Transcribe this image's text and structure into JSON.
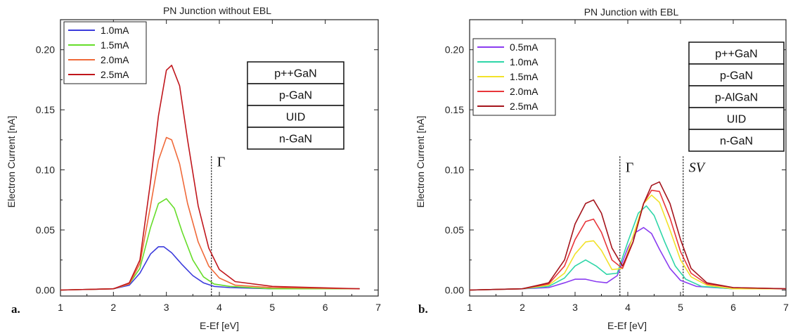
{
  "chart_data": [
    {
      "type": "line",
      "title": "PN Junction without EBL",
      "panel_label": "a.",
      "xlabel": "E-Ef [eV]",
      "ylabel": "Electron Current [nA]",
      "xlim": [
        1,
        7
      ],
      "ylim": [
        -0.005,
        0.225
      ],
      "xticks": [
        "1",
        "2",
        "3",
        "4",
        "5",
        "6",
        "7"
      ],
      "yticks": [
        "0.00",
        "0.05",
        "0.10",
        "0.15",
        "0.20"
      ],
      "legend_position": "top-left",
      "layer_stack": [
        "p++GaN",
        "p-GaN",
        "UID",
        "n-GaN"
      ],
      "annotations": [
        {
          "label": "Γ",
          "x": 3.85
        }
      ],
      "series": [
        {
          "name": "1.0mA",
          "color": "#3b3bdc",
          "x": [
            1.0,
            2.0,
            2.3,
            2.5,
            2.7,
            2.85,
            2.95,
            3.1,
            3.3,
            3.5,
            3.7,
            3.9,
            4.2,
            5.0,
            6.65
          ],
          "y": [
            0.0,
            0.001,
            0.004,
            0.014,
            0.03,
            0.036,
            0.036,
            0.031,
            0.021,
            0.012,
            0.006,
            0.003,
            0.002,
            0.001,
            0.001
          ]
        },
        {
          "name": "1.5mA",
          "color": "#66dd2a",
          "x": [
            1.0,
            2.0,
            2.3,
            2.5,
            2.7,
            2.85,
            3.0,
            3.15,
            3.3,
            3.5,
            3.7,
            3.9,
            4.2,
            5.0,
            6.65
          ],
          "y": [
            0.0,
            0.001,
            0.005,
            0.018,
            0.052,
            0.072,
            0.076,
            0.068,
            0.048,
            0.025,
            0.011,
            0.005,
            0.003,
            0.001,
            0.001
          ]
        },
        {
          "name": "2.0mA",
          "color": "#f06a3a",
          "x": [
            1.0,
            2.0,
            2.3,
            2.5,
            2.7,
            2.85,
            3.0,
            3.1,
            3.25,
            3.4,
            3.6,
            3.8,
            4.0,
            4.3,
            5.0,
            6.65
          ],
          "y": [
            0.0,
            0.001,
            0.005,
            0.022,
            0.07,
            0.108,
            0.127,
            0.125,
            0.105,
            0.072,
            0.04,
            0.02,
            0.01,
            0.004,
            0.002,
            0.001
          ]
        },
        {
          "name": "2.5mA",
          "color": "#c0161c",
          "x": [
            1.0,
            2.0,
            2.3,
            2.5,
            2.7,
            2.85,
            3.0,
            3.1,
            3.25,
            3.4,
            3.6,
            3.8,
            4.0,
            4.3,
            5.0,
            6.65
          ],
          "y": [
            0.0,
            0.001,
            0.006,
            0.025,
            0.09,
            0.145,
            0.183,
            0.187,
            0.17,
            0.125,
            0.07,
            0.035,
            0.017,
            0.007,
            0.003,
            0.001
          ]
        }
      ]
    },
    {
      "type": "line",
      "title": "PN Junction with EBL",
      "panel_label": "b.",
      "xlabel": "E-Ef [eV]",
      "ylabel": "Electron Current [nA]",
      "xlim": [
        1,
        7
      ],
      "ylim": [
        -0.005,
        0.225
      ],
      "xticks": [
        "1",
        "2",
        "3",
        "4",
        "5",
        "6",
        "7"
      ],
      "yticks": [
        "0.00",
        "0.05",
        "0.10",
        "0.15",
        "0.20"
      ],
      "legend_position": "top-left",
      "layer_stack": [
        "p++GaN",
        "p-GaN",
        "p-AlGaN",
        "UID",
        "n-GaN"
      ],
      "annotations": [
        {
          "label": "Γ",
          "x": 3.85
        },
        {
          "label": "SV",
          "x": 5.05
        }
      ],
      "series": [
        {
          "name": "0.5mA",
          "color": "#8a3cf0",
          "x": [
            1.0,
            2.0,
            2.5,
            2.8,
            3.0,
            3.2,
            3.4,
            3.6,
            3.8,
            4.0,
            4.15,
            4.3,
            4.45,
            4.6,
            4.8,
            5.0,
            5.3,
            6.0,
            7.0
          ],
          "y": [
            0.0,
            0.001,
            0.002,
            0.006,
            0.009,
            0.009,
            0.007,
            0.006,
            0.012,
            0.035,
            0.048,
            0.052,
            0.047,
            0.034,
            0.018,
            0.008,
            0.003,
            0.001,
            0.001
          ]
        },
        {
          "name": "1.0mA",
          "color": "#2ed6a8",
          "x": [
            1.0,
            2.0,
            2.5,
            2.8,
            3.0,
            3.2,
            3.4,
            3.6,
            3.8,
            4.0,
            4.2,
            4.35,
            4.5,
            4.7,
            4.9,
            5.1,
            5.4,
            6.0,
            7.0
          ],
          "y": [
            0.0,
            0.001,
            0.003,
            0.01,
            0.02,
            0.025,
            0.02,
            0.013,
            0.014,
            0.04,
            0.064,
            0.07,
            0.062,
            0.04,
            0.02,
            0.009,
            0.003,
            0.001,
            0.001
          ]
        },
        {
          "name": "1.5mA",
          "color": "#f2e22a",
          "x": [
            1.0,
            2.0,
            2.5,
            2.8,
            3.0,
            3.2,
            3.35,
            3.5,
            3.7,
            3.9,
            4.1,
            4.3,
            4.45,
            4.6,
            4.8,
            5.0,
            5.2,
            5.5,
            6.0,
            7.0
          ],
          "y": [
            0.0,
            0.001,
            0.004,
            0.014,
            0.03,
            0.04,
            0.041,
            0.033,
            0.017,
            0.018,
            0.045,
            0.072,
            0.079,
            0.073,
            0.05,
            0.025,
            0.011,
            0.004,
            0.001,
            0.001
          ]
        },
        {
          "name": "2.0mA",
          "color": "#e8353a",
          "x": [
            1.0,
            2.0,
            2.5,
            2.8,
            3.0,
            3.2,
            3.35,
            3.5,
            3.7,
            3.9,
            4.1,
            4.3,
            4.45,
            4.6,
            4.8,
            5.0,
            5.2,
            5.5,
            6.0,
            7.0
          ],
          "y": [
            0.0,
            0.001,
            0.005,
            0.02,
            0.042,
            0.057,
            0.059,
            0.048,
            0.025,
            0.018,
            0.04,
            0.072,
            0.083,
            0.082,
            0.06,
            0.032,
            0.014,
            0.005,
            0.002,
            0.001
          ]
        },
        {
          "name": "2.5mA",
          "color": "#a5141c",
          "x": [
            1.0,
            2.0,
            2.5,
            2.8,
            3.0,
            3.2,
            3.35,
            3.5,
            3.7,
            3.9,
            4.1,
            4.3,
            4.45,
            4.6,
            4.8,
            5.0,
            5.2,
            5.5,
            6.0,
            7.0
          ],
          "y": [
            0.0,
            0.001,
            0.006,
            0.025,
            0.055,
            0.072,
            0.075,
            0.064,
            0.035,
            0.02,
            0.04,
            0.072,
            0.087,
            0.09,
            0.072,
            0.042,
            0.018,
            0.006,
            0.002,
            0.001
          ]
        }
      ]
    }
  ]
}
